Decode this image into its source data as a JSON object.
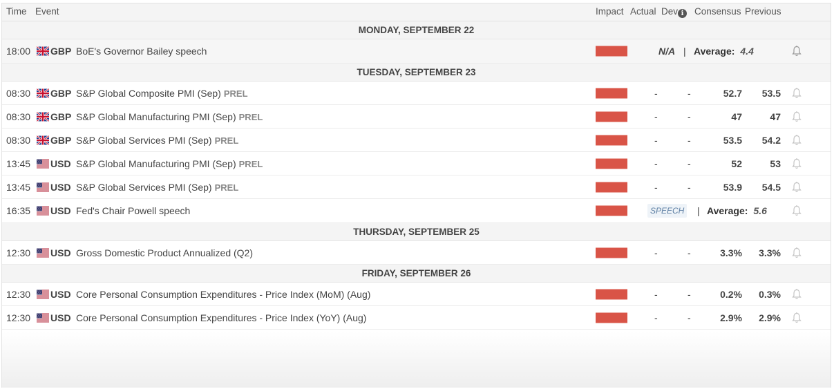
{
  "header": {
    "time": "Time",
    "event": "Event",
    "impact": "Impact",
    "actual": "Actual",
    "dev": "Dev",
    "consensus": "Consensus",
    "previous": "Previous"
  },
  "days": [
    {
      "label": "MONDAY, SEPTEMBER 22",
      "events": [
        {
          "time": "18:00",
          "flag": "gb",
          "currency": "GBP",
          "name": "BoE's Governor Bailey speech",
          "actual": "N/A",
          "sep": "|",
          "avg_label": "Average:",
          "avg_value": "4.4"
        }
      ]
    },
    {
      "label": "TUESDAY, SEPTEMBER 23",
      "events": [
        {
          "time": "08:30",
          "flag": "gb",
          "currency": "GBP",
          "name": "S&P Global Composite PMI (Sep)",
          "tag": "PREL",
          "actual": "-",
          "dev": "-",
          "consensus": "52.7",
          "previous": "53.5"
        },
        {
          "time": "08:30",
          "flag": "gb",
          "currency": "GBP",
          "name": "S&P Global Manufacturing PMI (Sep)",
          "tag": "PREL",
          "actual": "-",
          "dev": "-",
          "consensus": "47",
          "previous": "47"
        },
        {
          "time": "08:30",
          "flag": "gb",
          "currency": "GBP",
          "name": "S&P Global Services PMI (Sep)",
          "tag": "PREL",
          "actual": "-",
          "dev": "-",
          "consensus": "53.5",
          "previous": "54.2"
        },
        {
          "time": "13:45",
          "flag": "us",
          "currency": "USD",
          "name": "S&P Global Manufacturing PMI (Sep)",
          "tag": "PREL",
          "actual": "-",
          "dev": "-",
          "consensus": "52",
          "previous": "53"
        },
        {
          "time": "13:45",
          "flag": "us",
          "currency": "USD",
          "name": "S&P Global Services PMI (Sep)",
          "tag": "PREL",
          "actual": "-",
          "dev": "-",
          "consensus": "53.9",
          "previous": "54.5"
        },
        {
          "time": "16:35",
          "flag": "us",
          "currency": "USD",
          "name": "Fed's Chair Powell speech",
          "speech": "SPEECH",
          "sep": "|",
          "avg_label": "Average:",
          "avg_value": "5.6"
        }
      ]
    },
    {
      "label": "THURSDAY, SEPTEMBER 25",
      "events": [
        {
          "time": "12:30",
          "flag": "us",
          "currency": "USD",
          "name": "Gross Domestic Product Annualized (Q2)",
          "actual": "-",
          "dev": "-",
          "consensus": "3.3%",
          "previous": "3.3%"
        }
      ]
    },
    {
      "label": "FRIDAY, SEPTEMBER 26",
      "events": [
        {
          "time": "12:30",
          "flag": "us",
          "currency": "USD",
          "name": "Core Personal Consumption Expenditures - Price Index (MoM) (Aug)",
          "actual": "-",
          "dev": "-",
          "consensus": "0.2%",
          "previous": "0.3%"
        },
        {
          "time": "12:30",
          "flag": "us",
          "currency": "USD",
          "name": "Core Personal Consumption Expenditures - Price Index (YoY) (Aug)",
          "actual": "-",
          "dev": "-",
          "consensus": "2.9%",
          "previous": "2.9%"
        }
      ]
    }
  ],
  "colors": {
    "impact_high": "#d95447",
    "speech_bg": "#eef3f8",
    "header_bg": "#f4f4f4"
  },
  "icons": {
    "info": "info-icon",
    "bell": "bell-icon",
    "flag_gb": "flag-gb-icon",
    "flag_us": "flag-us-icon"
  }
}
